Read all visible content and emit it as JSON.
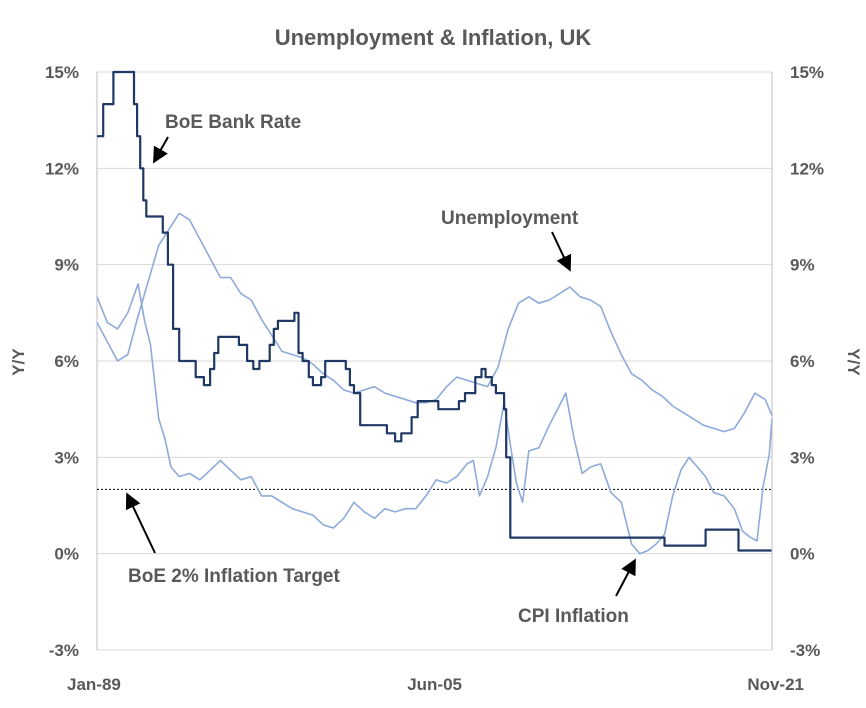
{
  "chart_data": {
    "type": "line",
    "title": "Unemployment & Inflation, UK",
    "ylabel_left": "Y/Y",
    "ylabel_right": "Y/Y",
    "ylim": [
      -3,
      15
    ],
    "yticks": [
      -3,
      0,
      3,
      6,
      9,
      12,
      15
    ],
    "ytick_labels": [
      "-3%",
      "0%",
      "3%",
      "6%",
      "9%",
      "12%",
      "15%"
    ],
    "xlim": [
      1989.0,
      2021.83
    ],
    "xtick_labels": [
      {
        "x": 1989.0,
        "label": "Jan-89"
      },
      {
        "x": 2005.42,
        "label": "Jun-05"
      },
      {
        "x": 2021.83,
        "label": "Nov-21"
      }
    ],
    "grid": true,
    "legend": "none",
    "annotations": [
      {
        "text": "BoE Bank Rate",
        "series": "BoE Bank Rate"
      },
      {
        "text": "Unemployment",
        "series": "Unemployment"
      },
      {
        "text": "BoE 2% Inflation Target",
        "series": "target"
      },
      {
        "text": "CPI Inflation",
        "series": "CPI Inflation"
      }
    ],
    "colors": {
      "bank_rate": "#1f3864",
      "unemployment": "#8eaadb",
      "cpi": "#8eaadb",
      "target": "#000000",
      "grid": "#d9d9d9",
      "text": "#595959"
    },
    "series": [
      {
        "name": "BoE Bank Rate",
        "style": "step",
        "x": [
          1989.0,
          1989.3,
          1989.4,
          1989.8,
          1990.8,
          1990.95,
          1991.1,
          1991.25,
          1991.4,
          1991.6,
          1992.2,
          1992.45,
          1992.7,
          1993.0,
          1993.8,
          1994.2,
          1994.5,
          1994.7,
          1994.9,
          1995.2,
          1995.9,
          1996.3,
          1996.6,
          1996.9,
          1997.4,
          1997.6,
          1997.8,
          1998.6,
          1998.8,
          1999.0,
          1999.3,
          1999.5,
          1999.9,
          2000.1,
          2001.1,
          2001.3,
          2001.5,
          2001.8,
          2003.1,
          2003.5,
          2003.8,
          2004.3,
          2004.6,
          2005.6,
          2006.6,
          2006.9,
          2007.4,
          2007.7,
          2007.9,
          2008.2,
          2008.4,
          2008.8,
          2008.9,
          2009.1,
          2016.6,
          2018.6,
          2020.2,
          2021.8
        ],
        "values": [
          13.0,
          14.0,
          14.0,
          15.0,
          14.0,
          13.0,
          12.0,
          11.0,
          10.5,
          10.5,
          10.0,
          9.0,
          7.0,
          6.0,
          5.5,
          5.25,
          5.75,
          6.25,
          6.75,
          6.75,
          6.5,
          6.0,
          5.75,
          6.0,
          6.5,
          7.0,
          7.25,
          7.5,
          6.25,
          6.0,
          5.5,
          5.25,
          5.5,
          6.0,
          5.75,
          5.25,
          5.0,
          4.0,
          3.75,
          3.5,
          3.75,
          4.25,
          4.75,
          4.5,
          4.75,
          5.0,
          5.5,
          5.75,
          5.5,
          5.25,
          5.0,
          4.5,
          3.0,
          0.5,
          0.25,
          0.75,
          0.1,
          0.1
        ]
      },
      {
        "name": "Unemployment",
        "style": "line",
        "x": [
          1989.0,
          1989.5,
          1990.0,
          1990.5,
          1991.0,
          1991.5,
          1992.0,
          1992.5,
          1993.0,
          1993.5,
          1994.0,
          1994.5,
          1995.0,
          1995.5,
          1996.0,
          1996.5,
          1997.0,
          1997.5,
          1998.0,
          1998.5,
          1999.0,
          1999.5,
          2000.0,
          2000.5,
          2001.0,
          2001.5,
          2002.0,
          2002.5,
          2003.0,
          2003.5,
          2004.0,
          2004.5,
          2005.0,
          2005.5,
          2006.0,
          2006.5,
          2007.0,
          2007.5,
          2008.0,
          2008.5,
          2009.0,
          2009.5,
          2010.0,
          2010.5,
          2011.0,
          2011.5,
          2012.0,
          2012.5,
          2013.0,
          2013.5,
          2014.0,
          2014.5,
          2015.0,
          2015.5,
          2016.0,
          2016.5,
          2017.0,
          2017.5,
          2018.0,
          2018.5,
          2019.0,
          2019.5,
          2020.0,
          2020.5,
          2021.0,
          2021.5,
          2021.83
        ],
        "values": [
          7.2,
          6.6,
          6.0,
          6.2,
          7.4,
          8.5,
          9.6,
          10.1,
          10.6,
          10.4,
          9.8,
          9.2,
          8.6,
          8.6,
          8.1,
          7.9,
          7.3,
          6.8,
          6.3,
          6.2,
          6.1,
          5.9,
          5.6,
          5.4,
          5.1,
          5.0,
          5.1,
          5.2,
          5.0,
          4.9,
          4.8,
          4.7,
          4.7,
          4.8,
          5.2,
          5.5,
          5.4,
          5.3,
          5.2,
          5.8,
          7.0,
          7.8,
          8.0,
          7.8,
          7.9,
          8.1,
          8.3,
          8.0,
          7.9,
          7.7,
          6.9,
          6.2,
          5.6,
          5.4,
          5.1,
          4.9,
          4.6,
          4.4,
          4.2,
          4.0,
          3.9,
          3.8,
          3.9,
          4.4,
          5.0,
          4.8,
          4.3
        ]
      },
      {
        "name": "CPI Inflation",
        "style": "line",
        "x": [
          1989.0,
          1989.5,
          1990.0,
          1990.5,
          1991.0,
          1991.3,
          1991.6,
          1992.0,
          1992.3,
          1992.6,
          1993.0,
          1993.5,
          1994.0,
          1994.5,
          1995.0,
          1995.5,
          1996.0,
          1996.5,
          1997.0,
          1997.5,
          1998.0,
          1998.5,
          1999.0,
          1999.5,
          2000.0,
          2000.5,
          2001.0,
          2001.5,
          2002.0,
          2002.5,
          2003.0,
          2003.5,
          2004.0,
          2004.5,
          2005.0,
          2005.5,
          2006.0,
          2006.5,
          2007.0,
          2007.3,
          2007.6,
          2008.0,
          2008.4,
          2008.8,
          2009.1,
          2009.4,
          2009.7,
          2010.0,
          2010.5,
          2011.0,
          2011.4,
          2011.8,
          2012.2,
          2012.6,
          2013.0,
          2013.5,
          2014.0,
          2014.5,
          2015.0,
          2015.4,
          2015.8,
          2016.2,
          2016.6,
          2017.0,
          2017.4,
          2017.8,
          2018.2,
          2018.6,
          2019.0,
          2019.5,
          2020.0,
          2020.4,
          2020.8,
          2021.1,
          2021.4,
          2021.7,
          2021.83
        ],
        "values": [
          8.0,
          7.2,
          7.0,
          7.5,
          8.4,
          7.3,
          6.5,
          4.2,
          3.6,
          2.7,
          2.4,
          2.5,
          2.3,
          2.6,
          2.9,
          2.6,
          2.3,
          2.4,
          1.8,
          1.8,
          1.6,
          1.4,
          1.3,
          1.2,
          0.9,
          0.8,
          1.1,
          1.6,
          1.3,
          1.1,
          1.4,
          1.3,
          1.4,
          1.4,
          1.8,
          2.3,
          2.2,
          2.4,
          2.8,
          2.9,
          1.8,
          2.4,
          3.3,
          4.7,
          3.4,
          2.2,
          1.6,
          3.2,
          3.3,
          4.0,
          4.5,
          5.0,
          3.6,
          2.5,
          2.7,
          2.8,
          1.9,
          1.6,
          0.3,
          0.0,
          0.1,
          0.3,
          0.6,
          1.8,
          2.6,
          3.0,
          2.7,
          2.4,
          1.9,
          1.8,
          1.4,
          0.7,
          0.5,
          0.4,
          2.1,
          3.1,
          4.2
        ]
      },
      {
        "name": "target",
        "style": "dotted",
        "x": [
          1989.0,
          2021.83
        ],
        "values": [
          2.0,
          2.0
        ]
      }
    ]
  }
}
